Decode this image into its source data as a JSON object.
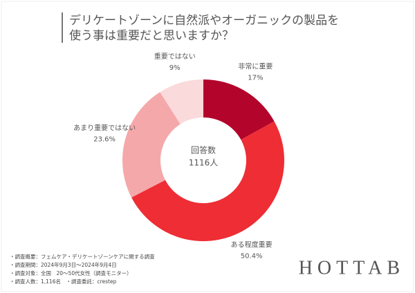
{
  "chart_data": {
    "type": "donut",
    "title": [
      "デリケートゾーンに自然派やオーガニックの製品を",
      "使う事は重要だと思いますか？"
    ],
    "categories": [
      "非常に重要",
      "ある程度重要",
      "あまり重要ではない",
      "重要ではない"
    ],
    "values": [
      17,
      50.4,
      23.6,
      9
    ],
    "value_labels": [
      "17%",
      "50.4%",
      "23.6%",
      "9%"
    ],
    "colors": [
      "#b3042b",
      "#ee2d35",
      "#f5a8aa",
      "#fbdadc"
    ],
    "center_label": [
      "回答数",
      "1116人"
    ]
  },
  "footnotes": [
    "・調査概要：フェムケア・デリケートゾーンケアに関する調査",
    "・調査期間：2024年9月3日〜2024年9月4日",
    "・調査対象：全国　20〜50代女性（調査モニター）",
    "・調査人数：1,116名　・調査委託：crestep"
  ],
  "brand": "HOTTAB"
}
